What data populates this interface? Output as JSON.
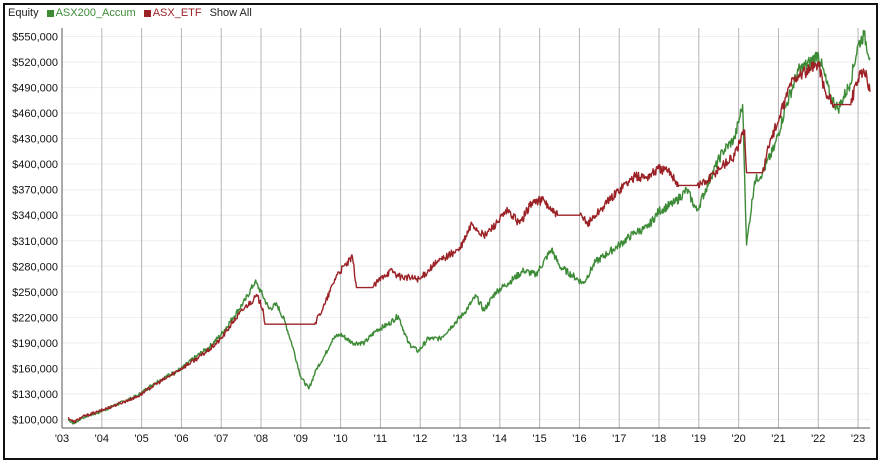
{
  "legend": {
    "title": "Equity",
    "show_all": "Show All"
  },
  "chart_data": {
    "type": "line",
    "title": "",
    "xlabel": "",
    "ylabel": "",
    "x_range": [
      2003.0,
      2023.3
    ],
    "ylim": [
      90000,
      560000
    ],
    "grid": "vertical year lines",
    "legend_placement": "top-left",
    "x_ticks": [
      "'03",
      "'04",
      "'05",
      "'06",
      "'07",
      "'08",
      "'09",
      "'10",
      "'11",
      "'12",
      "'13",
      "'14",
      "'15",
      "'16",
      "'17",
      "'18",
      "'19",
      "'20",
      "'21",
      "'22",
      "'23"
    ],
    "y_ticks": [
      "$100,000",
      "$130,000",
      "$160,000",
      "$190,000",
      "$220,000",
      "$250,000",
      "$280,000",
      "$310,000",
      "$340,000",
      "$370,000",
      "$400,000",
      "$430,000",
      "$460,000",
      "$490,000",
      "$520,000",
      "$550,000"
    ],
    "series": [
      {
        "name": "ASX200_Accum",
        "color": "#3d8b37",
        "points": [
          [
            2003.15,
            100000
          ],
          [
            2003.3,
            95000
          ],
          [
            2003.5,
            102000
          ],
          [
            2003.9,
            108000
          ],
          [
            2004.4,
            118000
          ],
          [
            2004.9,
            128000
          ],
          [
            2005.3,
            142000
          ],
          [
            2005.6,
            150000
          ],
          [
            2006.0,
            160000
          ],
          [
            2006.4,
            175000
          ],
          [
            2006.7,
            185000
          ],
          [
            2007.0,
            200000
          ],
          [
            2007.3,
            220000
          ],
          [
            2007.6,
            240000
          ],
          [
            2007.85,
            262000
          ],
          [
            2008.0,
            250000
          ],
          [
            2008.2,
            230000
          ],
          [
            2008.4,
            235000
          ],
          [
            2008.6,
            215000
          ],
          [
            2008.8,
            185000
          ],
          [
            2009.0,
            150000
          ],
          [
            2009.2,
            136000
          ],
          [
            2009.4,
            160000
          ],
          [
            2009.6,
            175000
          ],
          [
            2009.8,
            195000
          ],
          [
            2010.0,
            200000
          ],
          [
            2010.3,
            190000
          ],
          [
            2010.6,
            190000
          ],
          [
            2010.9,
            205000
          ],
          [
            2011.2,
            212000
          ],
          [
            2011.45,
            222000
          ],
          [
            2011.7,
            190000
          ],
          [
            2011.95,
            180000
          ],
          [
            2012.2,
            195000
          ],
          [
            2012.5,
            195000
          ],
          [
            2012.8,
            210000
          ],
          [
            2013.1,
            225000
          ],
          [
            2013.4,
            245000
          ],
          [
            2013.6,
            228000
          ],
          [
            2013.9,
            250000
          ],
          [
            2014.2,
            260000
          ],
          [
            2014.6,
            275000
          ],
          [
            2014.9,
            270000
          ],
          [
            2015.3,
            300000
          ],
          [
            2015.5,
            280000
          ],
          [
            2015.8,
            270000
          ],
          [
            2016.1,
            260000
          ],
          [
            2016.4,
            285000
          ],
          [
            2016.7,
            295000
          ],
          [
            2017.0,
            305000
          ],
          [
            2017.4,
            320000
          ],
          [
            2017.7,
            325000
          ],
          [
            2018.0,
            345000
          ],
          [
            2018.4,
            355000
          ],
          [
            2018.7,
            370000
          ],
          [
            2018.95,
            345000
          ],
          [
            2019.3,
            385000
          ],
          [
            2019.6,
            415000
          ],
          [
            2019.9,
            430000
          ],
          [
            2020.1,
            470000
          ],
          [
            2020.2,
            305000
          ],
          [
            2020.4,
            380000
          ],
          [
            2020.6,
            390000
          ],
          [
            2020.9,
            420000
          ],
          [
            2021.2,
            470000
          ],
          [
            2021.5,
            510000
          ],
          [
            2021.8,
            520000
          ],
          [
            2022.0,
            530000
          ],
          [
            2022.3,
            480000
          ],
          [
            2022.5,
            465000
          ],
          [
            2022.8,
            495000
          ],
          [
            2023.0,
            540000
          ],
          [
            2023.15,
            552000
          ],
          [
            2023.3,
            525000
          ]
        ]
      },
      {
        "name": "ASX_ETF",
        "color": "#9b2226",
        "points": [
          [
            2003.15,
            102000
          ],
          [
            2003.3,
            97000
          ],
          [
            2003.5,
            103000
          ],
          [
            2003.9,
            109000
          ],
          [
            2004.4,
            118000
          ],
          [
            2004.9,
            127000
          ],
          [
            2005.3,
            140000
          ],
          [
            2005.6,
            148000
          ],
          [
            2006.0,
            160000
          ],
          [
            2006.4,
            172000
          ],
          [
            2006.7,
            182000
          ],
          [
            2007.0,
            195000
          ],
          [
            2007.3,
            215000
          ],
          [
            2007.6,
            232000
          ],
          [
            2007.9,
            245000
          ],
          [
            2008.05,
            230000
          ],
          [
            2008.1,
            212000
          ],
          [
            2009.35,
            212000
          ],
          [
            2009.6,
            235000
          ],
          [
            2009.9,
            270000
          ],
          [
            2010.3,
            290000
          ],
          [
            2010.4,
            255000
          ],
          [
            2010.8,
            255000
          ],
          [
            2011.1,
            270000
          ],
          [
            2011.3,
            275000
          ],
          [
            2011.45,
            268000
          ],
          [
            2012.0,
            265000
          ],
          [
            2012.3,
            280000
          ],
          [
            2012.6,
            290000
          ],
          [
            2013.0,
            300000
          ],
          [
            2013.3,
            330000
          ],
          [
            2013.6,
            315000
          ],
          [
            2013.9,
            330000
          ],
          [
            2014.2,
            345000
          ],
          [
            2014.5,
            330000
          ],
          [
            2014.8,
            355000
          ],
          [
            2015.1,
            358000
          ],
          [
            2015.3,
            345000
          ],
          [
            2015.45,
            340000
          ],
          [
            2016.0,
            340000
          ],
          [
            2016.2,
            330000
          ],
          [
            2016.5,
            345000
          ],
          [
            2016.8,
            360000
          ],
          [
            2017.1,
            375000
          ],
          [
            2017.4,
            385000
          ],
          [
            2017.7,
            385000
          ],
          [
            2018.0,
            395000
          ],
          [
            2018.3,
            390000
          ],
          [
            2018.5,
            375000
          ],
          [
            2018.95,
            375000
          ],
          [
            2019.2,
            380000
          ],
          [
            2019.5,
            395000
          ],
          [
            2019.9,
            410000
          ],
          [
            2020.15,
            440000
          ],
          [
            2020.2,
            390000
          ],
          [
            2020.6,
            390000
          ],
          [
            2020.8,
            430000
          ],
          [
            2021.0,
            450000
          ],
          [
            2021.3,
            495000
          ],
          [
            2021.5,
            505000
          ],
          [
            2021.8,
            510000
          ],
          [
            2022.0,
            520000
          ],
          [
            2022.2,
            480000
          ],
          [
            2022.4,
            470000
          ],
          [
            2022.8,
            470000
          ],
          [
            2023.0,
            500000
          ],
          [
            2023.2,
            510000
          ],
          [
            2023.3,
            485000
          ]
        ]
      }
    ]
  }
}
